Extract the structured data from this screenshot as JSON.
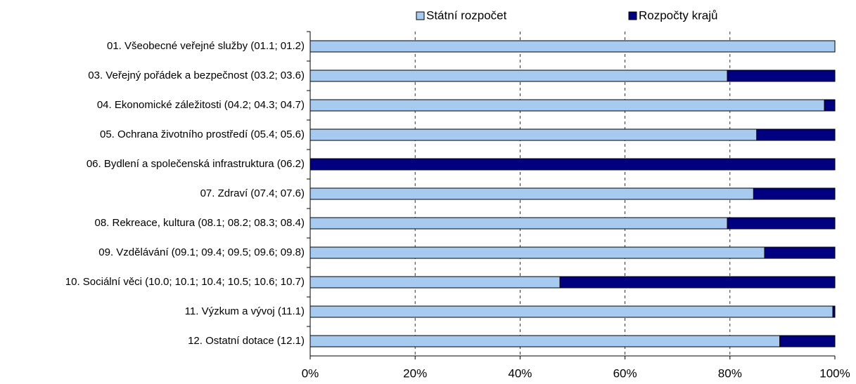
{
  "chart_data": {
    "type": "stacked_bar_horizontal",
    "categories": [
      "01. Všeobecné veřejné služby (01.1; 01.2)",
      "03. Veřejný pořádek a bezpečnost (03.2; 03.6)",
      "04. Ekonomické záležitosti (04.2; 04.3; 04.7)",
      "05. Ochrana životního prostředí (05.4; 05.6)",
      "06. Bydlení a společenská infrastruktura (06.2)",
      "07. Zdraví (07.4; 07.6)",
      "08. Rekreace, kultura (08.1; 08.2; 08.3; 08.4)",
      "09. Vzdělávání (09.1; 09.4; 09.5; 09.6; 09.8)",
      "10. Sociální věci (10.0; 10.1; 10.4; 10.5; 10.6; 10.7)",
      "11. Výzkum a vývoj (11.1)",
      "12. Ostatní dotace (12.1)"
    ],
    "series": [
      {
        "name": "Státní rozpočet",
        "color": "#a6caf0",
        "values": [
          100,
          79.5,
          98.0,
          85.1,
          0,
          84.5,
          79.5,
          86.6,
          47.6,
          99.6,
          89.5
        ]
      },
      {
        "name": "Rozpočty krajů",
        "color": "#000080",
        "values": [
          0,
          20.5,
          2.0,
          14.9,
          100,
          15.5,
          20.5,
          13.4,
          52.4,
          0.4,
          10.5
        ]
      }
    ],
    "xlim": [
      0,
      100
    ],
    "xticks": [
      {
        "value": 0,
        "label": "0%"
      },
      {
        "value": 20,
        "label": "20%"
      },
      {
        "value": 40,
        "label": "40%"
      },
      {
        "value": 60,
        "label": "60%"
      },
      {
        "value": 80,
        "label": "80%"
      },
      {
        "value": 100,
        "label": "100%"
      }
    ],
    "grid": true,
    "legend": "top"
  }
}
